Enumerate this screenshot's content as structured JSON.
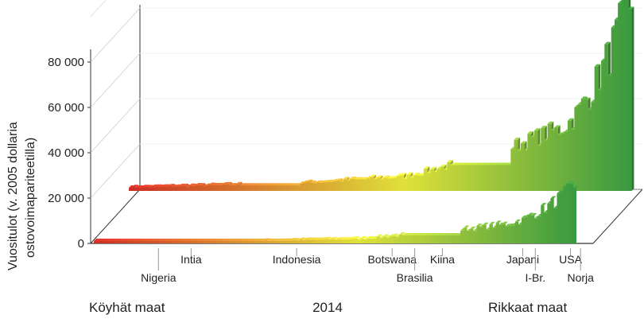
{
  "chart_data": {
    "type": "bar",
    "title": "",
    "ylabel_line1": "Vuositulot (v. 2005 dollaria",
    "ylabel_line2": "ostovoimapariteetilla)",
    "xlabel": "2014",
    "left_label": "Köyhät maat",
    "right_label": "Rikkaat maat",
    "ylim": [
      0,
      80000
    ],
    "yticks": [
      {
        "value": 0,
        "label": "0"
      },
      {
        "value": 20000,
        "label": "20 000"
      },
      {
        "value": 40000,
        "label": "40 000"
      },
      {
        "value": 60000,
        "label": "60 000"
      },
      {
        "value": 80000,
        "label": "80 000"
      }
    ],
    "color_scale": {
      "poor": "#cc2f26",
      "mid": "#dfe13a",
      "rich": "#3a9a3f"
    },
    "annotated_countries": [
      {
        "label": "Nigeria",
        "rank": 0.135,
        "row": 2
      },
      {
        "label": "Intia",
        "rank": 0.2,
        "row": 1
      },
      {
        "label": "Indonesia",
        "rank": 0.41,
        "row": 1
      },
      {
        "label": "Botswana",
        "rank": 0.6,
        "row": 1
      },
      {
        "label": "Brasilia",
        "rank": 0.645,
        "row": 2
      },
      {
        "label": "Kiina",
        "rank": 0.7,
        "row": 1
      },
      {
        "label": "Japani",
        "rank": 0.86,
        "row": 1
      },
      {
        "label": "I-Br.",
        "rank": 0.885,
        "row": 2
      },
      {
        "label": "USA",
        "rank": 0.955,
        "row": 1
      },
      {
        "label": "Norja",
        "rank": 0.975,
        "row": 2
      }
    ]
  }
}
